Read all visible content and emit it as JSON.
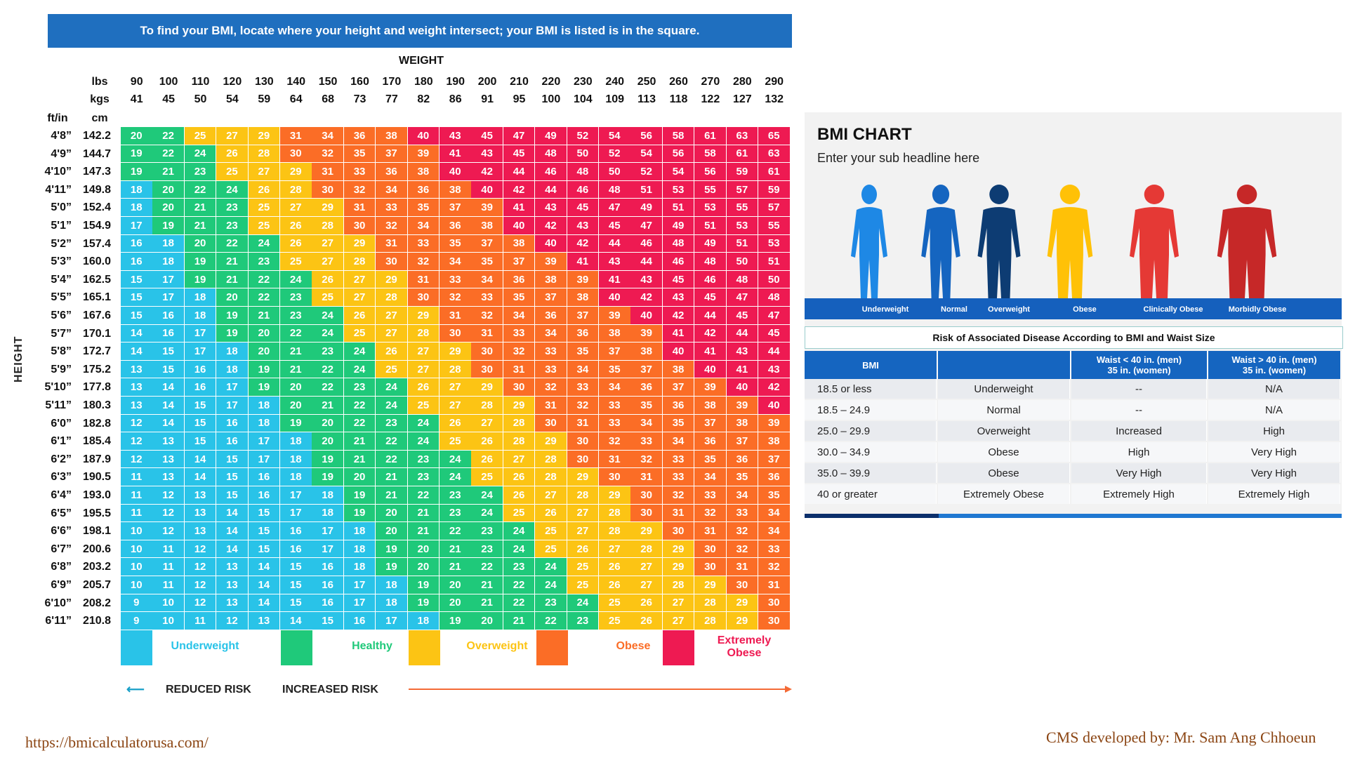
{
  "banner": "To find your BMI, locate where your height and weight intersect; your BMI is listed is in the square.",
  "weight_title": "WEIGHT",
  "height_title": "HEIGHT",
  "unit_labels": {
    "lbs": "lbs",
    "kgs": "kgs",
    "ftin": "ft/in",
    "cm": "cm"
  },
  "chart_data": {
    "type": "heatmap",
    "title": "WEIGHT",
    "ylabel": "HEIGHT",
    "lbs": [
      "90",
      "100",
      "110",
      "120",
      "130",
      "140",
      "150",
      "160",
      "170",
      "180",
      "190",
      "200",
      "210",
      "220",
      "230",
      "240",
      "250",
      "260",
      "270",
      "280",
      "290"
    ],
    "kgs": [
      "41",
      "45",
      "50",
      "54",
      "59",
      "64",
      "68",
      "73",
      "77",
      "82",
      "86",
      "91",
      "95",
      "100",
      "104",
      "109",
      "113",
      "118",
      "122",
      "127",
      "132"
    ],
    "heights_ftin": [
      "4'8”",
      "4'9”",
      "4'10”",
      "4'11”",
      "5'0”",
      "5'1”",
      "5'2”",
      "5'3”",
      "5'4”",
      "5'5”",
      "5'6”",
      "5'7”",
      "5'8”",
      "5'9”",
      "5'10”",
      "5'11”",
      "6'0”",
      "6'1”",
      "6'2”",
      "6'3”",
      "6'4”",
      "6'5”",
      "6'6”",
      "6'7”",
      "6'8”",
      "6'9”",
      "6'10”",
      "6'11”"
    ],
    "heights_cm": [
      "142.2",
      "144.7",
      "147.3",
      "149.8",
      "152.4",
      "154.9",
      "157.4",
      "160.0",
      "162.5",
      "165.1",
      "167.6",
      "170.1",
      "172.7",
      "175.2",
      "177.8",
      "180.3",
      "182.8",
      "185.4",
      "187.9",
      "190.5",
      "193.0",
      "195.5",
      "198.1",
      "200.6",
      "203.2",
      "205.7",
      "208.2",
      "210.8"
    ],
    "values": [
      [
        20,
        22,
        25,
        27,
        29,
        31,
        34,
        36,
        38,
        40,
        43,
        45,
        47,
        49,
        52,
        54,
        56,
        58,
        61,
        63,
        65
      ],
      [
        19,
        22,
        24,
        26,
        28,
        30,
        32,
        35,
        37,
        39,
        41,
        43,
        45,
        48,
        50,
        52,
        54,
        56,
        58,
        61,
        63
      ],
      [
        19,
        21,
        23,
        25,
        27,
        29,
        31,
        33,
        36,
        38,
        40,
        42,
        44,
        46,
        48,
        50,
        52,
        54,
        56,
        59,
        61
      ],
      [
        18,
        20,
        22,
        24,
        26,
        28,
        30,
        32,
        34,
        36,
        38,
        40,
        42,
        44,
        46,
        48,
        51,
        53,
        55,
        57,
        59
      ],
      [
        18,
        20,
        21,
        23,
        25,
        27,
        29,
        31,
        33,
        35,
        37,
        39,
        41,
        43,
        45,
        47,
        49,
        51,
        53,
        55,
        57
      ],
      [
        17,
        19,
        21,
        23,
        25,
        26,
        28,
        30,
        32,
        34,
        36,
        38,
        40,
        42,
        43,
        45,
        47,
        49,
        51,
        53,
        55
      ],
      [
        16,
        18,
        20,
        22,
        24,
        26,
        27,
        29,
        31,
        33,
        35,
        37,
        38,
        40,
        42,
        44,
        46,
        48,
        49,
        51,
        53
      ],
      [
        16,
        18,
        19,
        21,
        23,
        25,
        27,
        28,
        30,
        32,
        34,
        35,
        37,
        39,
        41,
        43,
        44,
        46,
        48,
        50,
        51
      ],
      [
        15,
        17,
        19,
        21,
        22,
        24,
        26,
        27,
        29,
        31,
        33,
        34,
        36,
        38,
        39,
        41,
        43,
        45,
        46,
        48,
        50
      ],
      [
        15,
        17,
        18,
        20,
        22,
        23,
        25,
        27,
        28,
        30,
        32,
        33,
        35,
        37,
        38,
        40,
        42,
        43,
        45,
        47,
        48
      ],
      [
        15,
        16,
        18,
        19,
        21,
        23,
        24,
        26,
        27,
        29,
        31,
        32,
        34,
        36,
        37,
        39,
        40,
        42,
        44,
        45,
        47
      ],
      [
        14,
        16,
        17,
        19,
        20,
        22,
        24,
        25,
        27,
        28,
        30,
        31,
        33,
        34,
        36,
        38,
        39,
        41,
        42,
        44,
        45
      ],
      [
        14,
        15,
        17,
        18,
        20,
        21,
        23,
        24,
        26,
        27,
        29,
        30,
        32,
        33,
        35,
        37,
        38,
        40,
        41,
        43,
        44
      ],
      [
        13,
        15,
        16,
        18,
        19,
        21,
        22,
        24,
        25,
        27,
        28,
        30,
        31,
        33,
        34,
        35,
        37,
        38,
        40,
        41,
        43
      ],
      [
        13,
        14,
        16,
        17,
        19,
        20,
        22,
        23,
        24,
        26,
        27,
        29,
        30,
        32,
        33,
        34,
        36,
        37,
        39,
        40,
        42
      ],
      [
        13,
        14,
        15,
        17,
        18,
        20,
        21,
        22,
        24,
        25,
        27,
        28,
        29,
        31,
        32,
        33,
        35,
        36,
        38,
        39,
        40
      ],
      [
        12,
        14,
        15,
        16,
        18,
        19,
        20,
        22,
        23,
        24,
        26,
        27,
        28,
        30,
        31,
        33,
        34,
        35,
        37,
        38,
        39
      ],
      [
        12,
        13,
        15,
        16,
        17,
        18,
        20,
        21,
        22,
        24,
        25,
        26,
        28,
        29,
        30,
        32,
        33,
        34,
        36,
        37,
        38
      ],
      [
        12,
        13,
        14,
        15,
        17,
        18,
        19,
        21,
        22,
        23,
        24,
        26,
        27,
        28,
        30,
        31,
        32,
        33,
        35,
        36,
        37
      ],
      [
        11,
        13,
        14,
        15,
        16,
        18,
        19,
        20,
        21,
        23,
        24,
        25,
        26,
        28,
        29,
        30,
        31,
        33,
        34,
        35,
        36
      ],
      [
        11,
        12,
        13,
        15,
        16,
        17,
        18,
        19,
        21,
        22,
        23,
        24,
        26,
        27,
        28,
        29,
        30,
        32,
        33,
        34,
        35
      ],
      [
        11,
        12,
        13,
        14,
        15,
        17,
        18,
        19,
        20,
        21,
        23,
        24,
        25,
        26,
        27,
        28,
        30,
        31,
        32,
        33,
        34
      ],
      [
        10,
        12,
        13,
        14,
        15,
        16,
        17,
        18,
        20,
        21,
        22,
        23,
        24,
        25,
        27,
        28,
        29,
        30,
        31,
        32,
        34
      ],
      [
        10,
        11,
        12,
        14,
        15,
        16,
        17,
        18,
        19,
        20,
        21,
        23,
        24,
        25,
        26,
        27,
        28,
        29,
        30,
        32,
        33
      ],
      [
        10,
        11,
        12,
        13,
        14,
        15,
        16,
        18,
        19,
        20,
        21,
        22,
        23,
        24,
        25,
        26,
        27,
        29,
        30,
        31,
        32
      ],
      [
        10,
        11,
        12,
        13,
        14,
        15,
        16,
        17,
        18,
        19,
        20,
        21,
        22,
        24,
        25,
        26,
        27,
        28,
        29,
        30,
        31
      ],
      [
        9,
        10,
        12,
        13,
        14,
        15,
        16,
        17,
        18,
        19,
        20,
        21,
        22,
        23,
        24,
        25,
        26,
        27,
        28,
        29,
        30
      ],
      [
        9,
        10,
        11,
        12,
        13,
        14,
        15,
        16,
        17,
        18,
        19,
        20,
        21,
        22,
        23,
        25,
        26,
        27,
        28,
        29,
        30
      ]
    ],
    "thresholds": [
      {
        "max": 18,
        "category": "Underweight",
        "color": "#29c3e8"
      },
      {
        "max": 24,
        "category": "Healthy",
        "color": "#1fc97a"
      },
      {
        "max": 29,
        "category": "Overweight",
        "color": "#fcc414"
      },
      {
        "max": 39,
        "category": "Obese",
        "color": "#fb6d26"
      },
      {
        "max": 99,
        "category": "Extremely Obese",
        "color": "#ee1a52"
      }
    ]
  },
  "legend": [
    {
      "label": "Underweight",
      "color": "#29c3e8"
    },
    {
      "label": "Healthy",
      "color": "#1fc97a"
    },
    {
      "label": "Overweight",
      "color": "#fcc414"
    },
    {
      "label": "Obese",
      "color": "#fb6d26"
    },
    {
      "label": "Extremely Obese",
      "color": "#ee1a52"
    }
  ],
  "risk": {
    "reduced": "REDUCED RISK",
    "increased": "INCREASED RISK"
  },
  "panel": {
    "title": "BMI CHART",
    "subtitle": "Enter your sub headline here",
    "figures": [
      "Underweight",
      "Normal",
      "Overweight",
      "Obese",
      "Clinically Obese",
      "Morbidly Obese"
    ],
    "figure_colors": [
      "#1e88e5",
      "#1565c0",
      "#0d3c73",
      "#ffc107",
      "#e53935",
      "#c62828"
    ],
    "table_title": "Risk of Associated Disease According to BMI and Waist Size",
    "headers": [
      "BMI",
      "",
      "Waist < 40 in. (men)\n35 in. (women)",
      "Waist > 40 in. (men)\n35 in. (women)"
    ],
    "rows": [
      [
        "18.5 or less",
        "Underweight",
        "--",
        "N/A"
      ],
      [
        "18.5 – 24.9",
        "Normal",
        "--",
        "N/A"
      ],
      [
        "25.0 – 29.9",
        "Overweight",
        "Increased",
        "High"
      ],
      [
        "30.0 – 34.9",
        "Obese",
        "High",
        "Very High"
      ],
      [
        "35.0 – 39.9",
        "Obese",
        "Very High",
        "Very High"
      ],
      [
        "40 or greater",
        "Extremely Obese",
        "Extremely High",
        "Extremely High"
      ]
    ]
  },
  "footer": {
    "left": "https://bmicalculatorusa.com/",
    "right": "CMS developed by: Mr. Sam Ang Chhoeun"
  }
}
